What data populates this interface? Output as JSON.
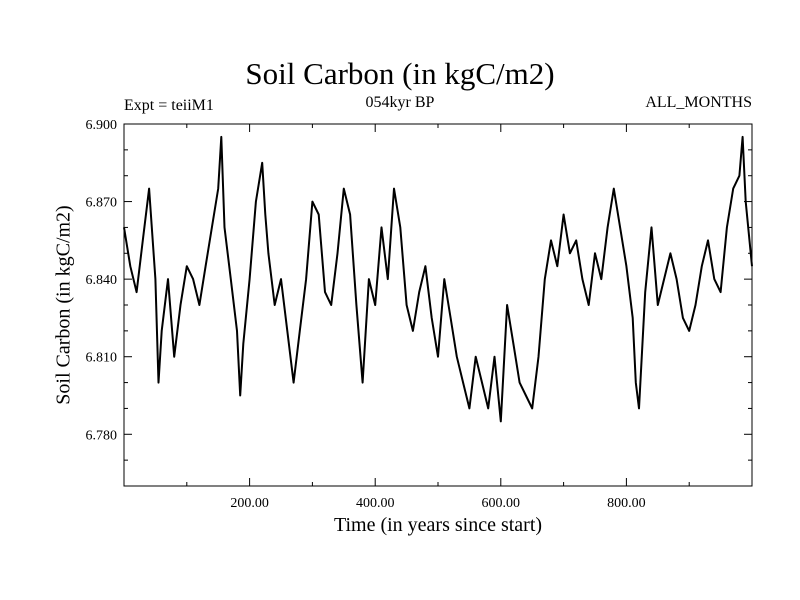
{
  "chart_data": {
    "type": "line",
    "title": "Soil Carbon (in kgC/m2)",
    "subtitle": "054kyr BP",
    "left_annotation": "Expt = teiiM1",
    "right_annotation": "ALL_MONTHS",
    "xlabel": "Time (in years since start)",
    "ylabel": "Soil Carbon (in kgC/m2)",
    "xlim": [
      0,
      1000
    ],
    "ylim": [
      6.76,
      6.9
    ],
    "x_ticks": [
      200,
      400,
      600,
      800
    ],
    "x_tick_labels": [
      "200.00",
      "400.00",
      "600.00",
      "800.00"
    ],
    "y_ticks": [
      6.78,
      6.81,
      6.84,
      6.87,
      6.9
    ],
    "y_tick_labels": [
      "6.780",
      "6.810",
      "6.840",
      "6.870",
      "6.900"
    ],
    "grid": false,
    "series": [
      {
        "color": "#000000",
        "x": [
          0,
          10,
          20,
          30,
          40,
          50,
          55,
          60,
          70,
          80,
          90,
          100,
          110,
          120,
          130,
          140,
          150,
          155,
          160,
          170,
          180,
          185,
          190,
          200,
          210,
          220,
          225,
          230,
          240,
          250,
          260,
          270,
          280,
          290,
          300,
          310,
          320,
          330,
          340,
          350,
          360,
          370,
          380,
          390,
          400,
          410,
          420,
          430,
          440,
          450,
          460,
          470,
          480,
          490,
          500,
          510,
          520,
          530,
          540,
          550,
          560,
          570,
          580,
          590,
          600,
          610,
          620,
          630,
          640,
          650,
          660,
          670,
          680,
          690,
          700,
          710,
          720,
          730,
          740,
          750,
          760,
          770,
          780,
          790,
          800,
          810,
          815,
          820,
          830,
          840,
          850,
          860,
          870,
          880,
          890,
          900,
          910,
          920,
          930,
          940,
          950,
          960,
          970,
          980,
          985,
          990,
          1000
        ],
        "values": [
          6.86,
          6.845,
          6.835,
          6.855,
          6.875,
          6.84,
          6.8,
          6.82,
          6.84,
          6.81,
          6.83,
          6.845,
          6.84,
          6.83,
          6.845,
          6.86,
          6.875,
          6.895,
          6.86,
          6.84,
          6.82,
          6.795,
          6.815,
          6.84,
          6.87,
          6.885,
          6.865,
          6.85,
          6.83,
          6.84,
          6.82,
          6.8,
          6.82,
          6.84,
          6.87,
          6.865,
          6.835,
          6.83,
          6.85,
          6.875,
          6.865,
          6.83,
          6.8,
          6.84,
          6.83,
          6.86,
          6.84,
          6.875,
          6.86,
          6.83,
          6.82,
          6.835,
          6.845,
          6.825,
          6.81,
          6.84,
          6.825,
          6.81,
          6.8,
          6.79,
          6.81,
          6.8,
          6.79,
          6.81,
          6.785,
          6.83,
          6.815,
          6.8,
          6.795,
          6.79,
          6.81,
          6.84,
          6.855,
          6.845,
          6.865,
          6.85,
          6.855,
          6.84,
          6.83,
          6.85,
          6.84,
          6.86,
          6.875,
          6.86,
          6.845,
          6.825,
          6.8,
          6.79,
          6.835,
          6.86,
          6.83,
          6.84,
          6.85,
          6.84,
          6.825,
          6.82,
          6.83,
          6.845,
          6.855,
          6.84,
          6.835,
          6.86,
          6.875,
          6.88,
          6.895,
          6.87,
          6.845
        ]
      }
    ]
  }
}
